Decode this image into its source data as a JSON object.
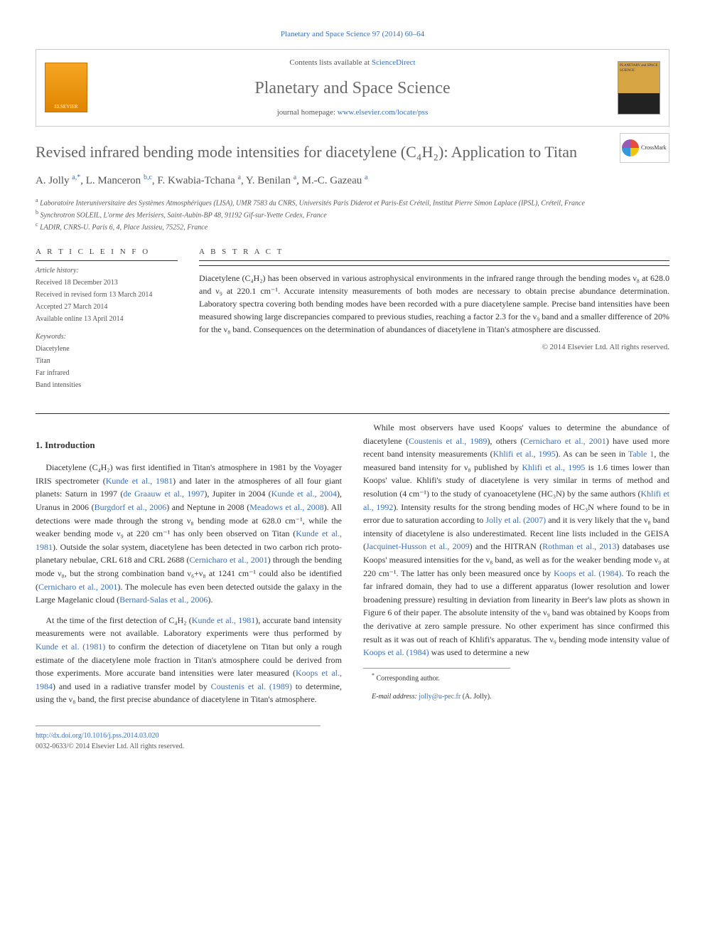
{
  "top_link": "Planetary and Space Science 97 (2014) 60–64",
  "header": {
    "contents_prefix": "Contents lists available at ",
    "contents_link": "ScienceDirect",
    "journal_title": "Planetary and Space Science",
    "homepage_prefix": "journal homepage: ",
    "homepage_link": "www.elsevier.com/locate/pss",
    "elsevier_label": "ELSEVIER",
    "cover_text": "PLANETARY and SPACE SCIENCE"
  },
  "crossmark_label": "CrossMark",
  "article": {
    "title": "Revised infrared bending mode intensities for diacetylene (C₄H₂): Application to Titan",
    "authors_html": "A. Jolly <span class='sup'>a,*</span>, L. Manceron <span class='sup'>b,c</span>, F. Kwabia-Tchana <span class='sup'>a</span>, Y. Benilan <span class='sup'>a</span>, M.-C. Gazeau <span class='sup'>a</span>",
    "affiliations": {
      "a": "Laboratoire Interuniversitaire des Systèmes Atmosphériques (LISA), UMR 7583 du CNRS, Universités Paris Diderot et Paris-Est Créteil, Institut Pierre Simon Laplace (IPSL), Créteil, France",
      "b": "Synchrotron SOLEIL, L'orme des Merisiers, Saint-Aubin-BP 48, 91192 Gif-sur-Yvette Cedex, France",
      "c": "LADIR, CNRS-U. Paris 6, 4, Place Jussieu, 75252, France"
    }
  },
  "info": {
    "info_heading": "A R T I C L E   I N F O",
    "abstract_heading": "A B S T R A C T",
    "history_label": "Article history:",
    "received": "Received 18 December 2013",
    "revised": "Received in revised form 13 March 2014",
    "accepted": "Accepted 27 March 2014",
    "online": "Available online 13 April 2014",
    "keywords_label": "Keywords:",
    "keywords": [
      "Diacetylene",
      "Titan",
      "Far infrared",
      "Band intensities"
    ]
  },
  "abstract": {
    "text": "Diacetylene (C₄H₂) has been observed in various astrophysical environments in the infrared range through the bending modes ν₈ at 628.0 and ν₉ at 220.1 cm⁻¹. Accurate intensity measurements of both modes are necessary to obtain precise abundance determination. Laboratory spectra covering both bending modes have been recorded with a pure diacetylene sample. Precise band intensities have been measured showing large discrepancies compared to previous studies, reaching a factor 2.3 for the ν₉ band and a smaller difference of 20% for the ν₈ band. Consequences on the determination of abundances of diacetylene in Titan's atmosphere are discussed.",
    "copyright": "© 2014 Elsevier Ltd. All rights reserved."
  },
  "section1_heading": "1.  Introduction",
  "paragraphs": [
    "Diacetylene (C₄H₂) was first identified in Titan's atmosphere in 1981 by the Voyager IRIS spectrometer (<a>Kunde et al., 1981</a>) and later in the atmospheres of all four giant planets: Saturn in 1997 (<a>de Graauw et al., 1997</a>), Jupiter in 2004 (<a>Kunde et al., 2004</a>), Uranus in 2006 (<a>Burgdorf et al., 2006</a>) and Neptune in 2008 (<a>Meadows et al., 2008</a>). All detections were made through the strong <span class='greek'>ν</span>₈ bending mode at 628.0 cm⁻¹, while the weaker bending mode <span class='greek'>ν</span>₉ at 220 cm⁻¹ has only been observed on Titan (<a>Kunde et al., 1981</a>). Outside the solar system, diacetylene has been detected in two carbon rich proto-planetary nebulae, CRL 618 and CRL 2688 (<a>Cernicharo et al., 2001</a>) through the bending mode <span class='greek'>ν</span>₈, but the strong combination band <span class='greek'>ν</span>₆+<span class='greek'>ν</span>₈ at 1241 cm⁻¹ could also be identified (<a>Cernicharo et al., 2001</a>). The molecule has even been detected outside the galaxy in the Large Magelanic cloud (<a>Bernard-Salas et al., 2006</a>).",
    "At the time of the first detection of C₄H₂ (<a>Kunde et al., 1981</a>), accurate band intensity measurements were not available. Laboratory experiments were thus performed by <a>Kunde et al. (1981)</a> to confirm the detection of diacetylene on Titan but only a rough estimate of the diacetylene mole fraction in Titan's atmosphere could be derived from those experiments. More accurate band intensities were later measured (<a>Koops et al., 1984</a>) and used in a radiative transfer model by <a>Coustenis et al. (1989)</a> to determine, using the <span class='greek'>ν</span>₈ band, the first precise abundance of diacetylene in Titan's atmosphere.",
    "While most observers have used Koops' values to determine the abundance of diacetylene (<a>Coustenis et al., 1989</a>), others (<a>Cernicharo et al., 2001</a>) have used more recent band intensity measurements (<a>Khlifi et al., 1995</a>). As can be seen in <a>Table 1</a>, the measured band intensity for <span class='greek'>ν</span>₈ published by <a>Khlifi et al., 1995</a> is 1.6 times lower than Koops' value. Khlifi's study of diacetylene is very similar in terms of method and resolution (4 cm⁻¹) to the study of cyanoacetylene (HC₃N) by the same authors (<a>Khlifi et al., 1992</a>). Intensity results for the strong bending modes of HC₃N where found to be in error due to saturation according to <a>Jolly et al. (2007)</a> and it is very likely that the <span class='greek'>ν</span>₈ band intensity of diacetylene is also underestimated. Recent line lists included in the GEISA (<a>Jacquinet-Husson et al., 2009</a>) and the HITRAN (<a>Rothman et al., 2013</a>) databases use Koops' measured intensities for the <span class='greek'>ν</span>₈ band, as well as for the weaker bending mode <span class='greek'>ν</span>₉ at 220 cm⁻¹. The latter has only been measured once by <a>Koops et al. (1984)</a>. To reach the far infrared domain, they had to use a different apparatus (lower resolution and lower broadening pressure) resulting in deviation from linearity in Beer's law plots as shown in Figure 6 of their paper. The absolute intensity of the <span class='greek'>ν</span>₉ band was obtained by Koops from the derivative at zero sample pressure. No other experiment has since confirmed this result as it was out of reach of Khlifi's apparatus. The <span class='greek'>ν</span>₉ bending mode intensity value of <a>Koops et al. (1984)</a> was used to determine a new"
  ],
  "footnote": {
    "corr_label": "Corresponding author.",
    "email_label": "E-mail address: ",
    "email": "jolly@u-pec.fr",
    "email_suffix": " (A. Jolly)."
  },
  "footer": {
    "doi": "http://dx.doi.org/10.1016/j.pss.2014.03.020",
    "issn": "0032-0633/© 2014 Elsevier Ltd. All rights reserved."
  },
  "colors": {
    "link": "#3a6fb7",
    "text": "#333333",
    "muted": "#626262",
    "border": "#cccccc"
  }
}
